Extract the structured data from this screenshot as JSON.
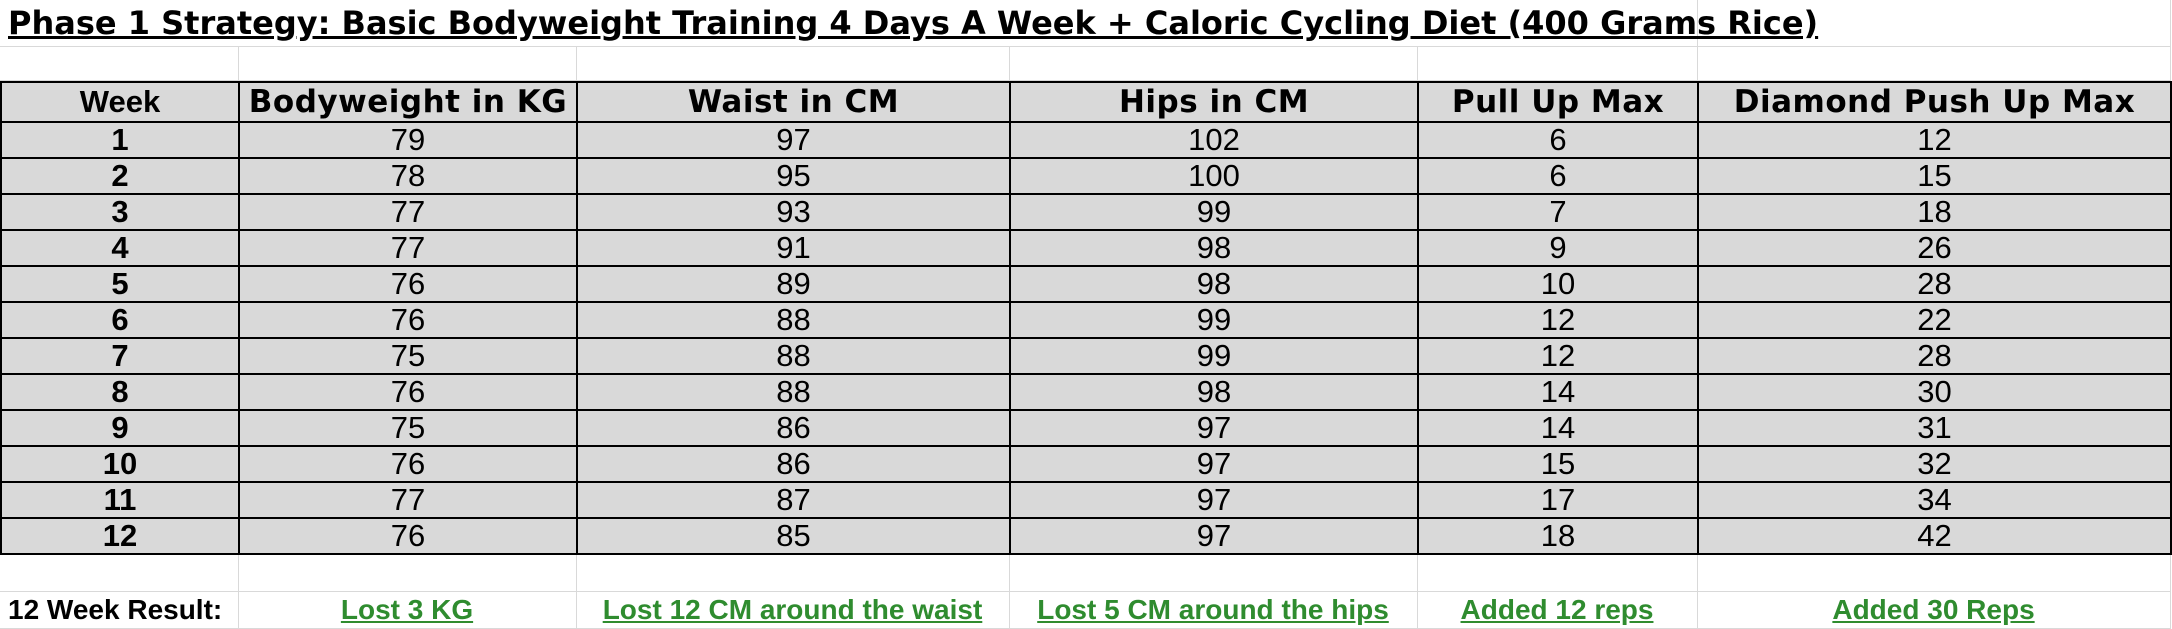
{
  "title": "Phase 1 Strategy: Basic Bodyweight Training 4 Days A Week + Caloric Cycling Diet (400 Grams Rice)",
  "table": {
    "headers": [
      "Week",
      "Bodyweight in KG",
      "Waist in CM",
      "Hips in CM",
      "Pull Up Max",
      "Diamond Push Up Max"
    ],
    "rows": [
      [
        "1",
        "79",
        "97",
        "102",
        "6",
        "12"
      ],
      [
        "2",
        "78",
        "95",
        "100",
        "6",
        "15"
      ],
      [
        "3",
        "77",
        "93",
        "99",
        "7",
        "18"
      ],
      [
        "4",
        "77",
        "91",
        "98",
        "9",
        "26"
      ],
      [
        "5",
        "76",
        "89",
        "98",
        "10",
        "28"
      ],
      [
        "6",
        "76",
        "88",
        "99",
        "12",
        "22"
      ],
      [
        "7",
        "75",
        "88",
        "99",
        "12",
        "28"
      ],
      [
        "8",
        "76",
        "88",
        "98",
        "14",
        "30"
      ],
      [
        "9",
        "75",
        "86",
        "97",
        "14",
        "31"
      ],
      [
        "10",
        "76",
        "86",
        "97",
        "15",
        "32"
      ],
      [
        "11",
        "77",
        "87",
        "97",
        "17",
        "34"
      ],
      [
        "12",
        "76",
        "85",
        "97",
        "18",
        "42"
      ]
    ]
  },
  "result": {
    "label": "12 Week Result:",
    "values": [
      "Lost 3 KG",
      "Lost 12 CM around the waist",
      "Lost 5 CM around the hips",
      "Added 12 reps",
      "Added 30 Reps"
    ]
  },
  "colors": {
    "header_text": "#c8952b",
    "result_text": "#2f8c2f",
    "cell_fill": "#d9d9d9"
  }
}
